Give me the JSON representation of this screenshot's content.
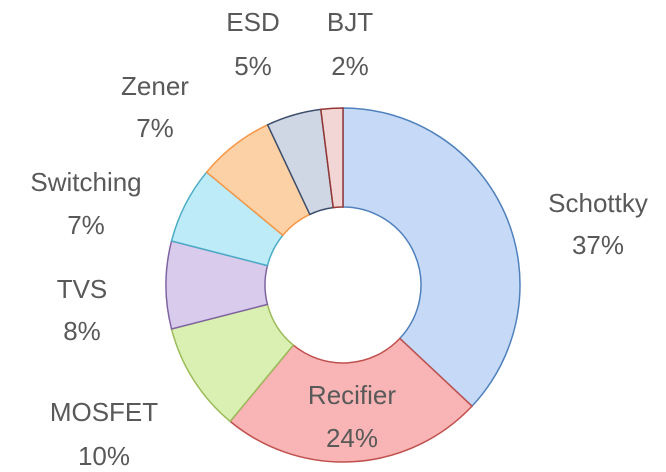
{
  "chart_data": {
    "type": "donut",
    "categories": [
      "Schottky",
      "Recifier",
      "MOSFET",
      "TVS",
      "Switching",
      "Zener",
      "ESD",
      "BJT"
    ],
    "values": [
      37,
      24,
      10,
      8,
      7,
      7,
      5,
      2
    ],
    "value_labels": [
      "37%",
      "24%",
      "10%",
      "8%",
      "7%",
      "7%",
      "5%",
      "2%"
    ],
    "colors": [
      "#c6d9f6",
      "#f9b5b5",
      "#d9f0b2",
      "#d8cbec",
      "#bdebf7",
      "#fbd1a5",
      "#cfd7e4",
      "#f2d6d6"
    ],
    "stroke_colors": [
      "#4f81bd",
      "#c0504d",
      "#9bbb59",
      "#8064a2",
      "#4bacc6",
      "#f79646",
      "#3b4e6b",
      "#943634"
    ]
  }
}
